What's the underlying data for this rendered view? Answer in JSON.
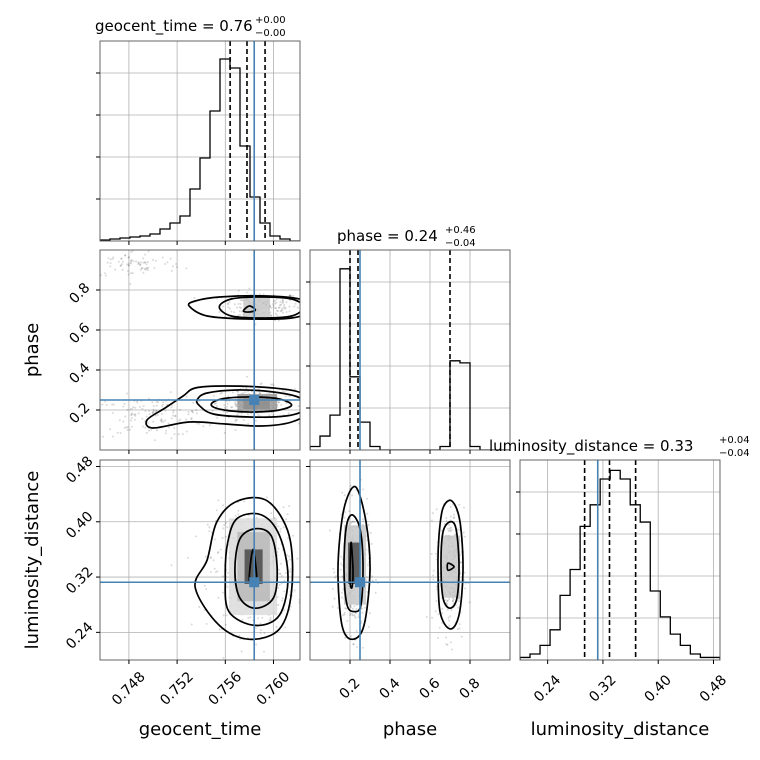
{
  "chart_data": {
    "type": "corner",
    "truth_color": "#4682b4",
    "line_color": "#000000",
    "grid": true,
    "parameters": [
      {
        "name": "geocent_time",
        "axis_label": "geocent_time",
        "title_prefix": "geocent_time = ",
        "median": "0.76",
        "err_plus": "+0.00",
        "err_minus": "−0.00",
        "range": [
          0.7456,
          0.7622
        ],
        "ticks": [
          0.748,
          0.752,
          0.756,
          0.76
        ],
        "tick_labels": [
          "0.748",
          "0.752",
          "0.756",
          "0.760"
        ],
        "truth": 0.7584,
        "quantiles": [
          0.7564,
          0.7578,
          0.7593
        ],
        "hist_edges": [
          0.7456,
          0.74643,
          0.74726,
          0.74809,
          0.74892,
          0.74975,
          0.75058,
          0.75141,
          0.75224,
          0.75307,
          0.7539,
          0.75473,
          0.75556,
          0.75639,
          0.75722,
          0.75805,
          0.75888,
          0.75971,
          0.76054,
          0.76137,
          0.7622
        ],
        "hist_counts": [
          1,
          2,
          3,
          4,
          5,
          7,
          12,
          18,
          25,
          52,
          83,
          130,
          182,
          173,
          95,
          44,
          18,
          5,
          2,
          0
        ],
        "hist_max": 200
      },
      {
        "name": "phase",
        "axis_label": "phase",
        "title_prefix": "phase = ",
        "median": "0.24",
        "err_plus": "+0.46",
        "err_minus": "−0.04",
        "range": [
          0.0,
          1.0
        ],
        "ticks": [
          0.2,
          0.4,
          0.6,
          0.8
        ],
        "tick_labels": [
          "0.2",
          "0.4",
          "0.6",
          "0.8"
        ],
        "truth": 0.25,
        "quantiles": [
          0.2,
          0.24,
          0.7
        ],
        "hist_edges": [
          0.0,
          0.05,
          0.1,
          0.15,
          0.2,
          0.25,
          0.3,
          0.35,
          0.4,
          0.45,
          0.5,
          0.55,
          0.6,
          0.65,
          0.7,
          0.75,
          0.8,
          0.85,
          0.9,
          0.95,
          1.0
        ],
        "hist_counts": [
          5,
          20,
          50,
          260,
          105,
          40,
          5,
          0,
          0,
          0,
          0,
          0,
          0,
          5,
          128,
          125,
          5,
          0,
          0,
          0
        ],
        "hist_max": 287
      },
      {
        "name": "luminosity_distance",
        "axis_label": "luminosity_distance",
        "title_prefix": "luminosity_distance = ",
        "median": "0.33",
        "err_plus": "+0.04",
        "err_minus": "−0.04",
        "range": [
          0.2,
          0.4894
        ],
        "ticks": [
          0.24,
          0.32,
          0.4,
          0.48
        ],
        "tick_labels": [
          "0.24",
          "0.32",
          "0.40",
          "0.48"
        ],
        "truth": 0.3125,
        "quantiles": [
          0.2935,
          0.3295,
          0.3673
        ],
        "hist_edges": [
          0.2,
          0.2145,
          0.229,
          0.2435,
          0.258,
          0.2725,
          0.287,
          0.3015,
          0.316,
          0.3305,
          0.345,
          0.3595,
          0.374,
          0.3885,
          0.403,
          0.4175,
          0.432,
          0.4465,
          0.461,
          0.4755,
          0.4894
        ],
        "hist_counts": [
          3,
          7,
          17,
          35,
          75,
          105,
          155,
          180,
          210,
          220,
          210,
          180,
          160,
          80,
          50,
          30,
          17,
          7,
          3,
          3
        ],
        "hist_max": 232
      }
    ],
    "panels_2d": [
      {
        "x_param": 0,
        "y_param": 1,
        "truth_marker": [
          0.7584,
          0.25
        ],
        "clouds": [
          {
            "cx": 0.759,
            "cy": 0.72,
            "sx": 0.0016,
            "sy": 0.035,
            "n": 180
          },
          {
            "cx": 0.7585,
            "cy": 0.235,
            "sx": 0.0016,
            "sy": 0.04,
            "n": 280
          },
          {
            "cx": 0.75,
            "cy": 0.17,
            "sx": 0.0025,
            "sy": 0.05,
            "n": 150
          },
          {
            "cx": 0.7485,
            "cy": 0.93,
            "sx": 0.002,
            "sy": 0.035,
            "n": 80
          }
        ],
        "density_blocks": [
          {
            "x0": 0.7575,
            "x1": 0.7597,
            "y0": 0.205,
            "y1": 0.27,
            "shade": "#4a4a4a"
          },
          {
            "x0": 0.757,
            "x1": 0.7603,
            "y0": 0.195,
            "y1": 0.28,
            "shade": "#9a9a9a"
          },
          {
            "x0": 0.7575,
            "x1": 0.7597,
            "y0": 0.66,
            "y1": 0.76,
            "shade": "#c8c8c8"
          }
        ],
        "contours": [
          [
            [
              0.755,
              0.215
            ],
            [
              0.7565,
              0.195
            ],
            [
              0.7585,
              0.19
            ],
            [
              0.7605,
              0.2
            ],
            [
              0.7615,
              0.225
            ],
            [
              0.7605,
              0.255
            ],
            [
              0.7585,
              0.265
            ],
            [
              0.7562,
              0.26
            ],
            [
              0.755,
              0.24
            ]
          ],
          [
            [
              0.7538,
              0.225
            ],
            [
              0.755,
              0.18
            ],
            [
              0.758,
              0.165
            ],
            [
              0.761,
              0.17
            ],
            [
              0.7625,
              0.2
            ],
            [
              0.7622,
              0.26
            ],
            [
              0.76,
              0.29
            ],
            [
              0.757,
              0.3
            ],
            [
              0.7545,
              0.285
            ],
            [
              0.7537,
              0.255
            ]
          ],
          [
            [
              0.75,
              0.11
            ],
            [
              0.753,
              0.14
            ],
            [
              0.756,
              0.13
            ],
            [
              0.759,
              0.12
            ],
            [
              0.7615,
              0.14
            ],
            [
              0.7632,
              0.2
            ],
            [
              0.7625,
              0.28
            ],
            [
              0.76,
              0.31
            ],
            [
              0.756,
              0.32
            ],
            [
              0.7535,
              0.31
            ],
            [
              0.7525,
              0.27
            ],
            [
              0.751,
              0.21
            ],
            [
              0.7495,
              0.15
            ]
          ],
          [
            [
              0.7575,
              0.695
            ],
            [
              0.758,
              0.72
            ],
            [
              0.7585,
              0.7
            ],
            [
              0.758,
              0.69
            ]
          ],
          [
            [
              0.7555,
              0.715
            ],
            [
              0.7565,
              0.67
            ],
            [
              0.759,
              0.66
            ],
            [
              0.7615,
              0.67
            ],
            [
              0.7625,
              0.715
            ],
            [
              0.7615,
              0.755
            ],
            [
              0.759,
              0.765
            ],
            [
              0.7565,
              0.755
            ]
          ],
          [
            [
              0.753,
              0.72
            ],
            [
              0.7545,
              0.67
            ],
            [
              0.758,
              0.655
            ],
            [
              0.7615,
              0.66
            ],
            [
              0.7633,
              0.7
            ],
            [
              0.7625,
              0.75
            ],
            [
              0.7595,
              0.77
            ],
            [
              0.7555,
              0.765
            ],
            [
              0.7535,
              0.745
            ]
          ]
        ]
      },
      {
        "x_param": 0,
        "y_param": 2,
        "truth_marker": [
          0.7584,
          0.3125
        ],
        "clouds": [
          {
            "cx": 0.7583,
            "cy": 0.33,
            "sx": 0.0018,
            "sy": 0.045,
            "n": 420
          }
        ],
        "density_blocks": [
          {
            "x0": 0.7563,
            "x1": 0.7603,
            "y0": 0.265,
            "y1": 0.405,
            "shade": "#dcdcdc"
          },
          {
            "x0": 0.757,
            "x1": 0.7597,
            "y0": 0.285,
            "y1": 0.385,
            "shade": "#b8b8b8"
          },
          {
            "x0": 0.7576,
            "x1": 0.7591,
            "y0": 0.31,
            "y1": 0.36,
            "shade": "#4a4a4a"
          }
        ],
        "contours": [
          [
            [
              0.758,
              0.315
            ],
            [
              0.7583,
              0.36
            ],
            [
              0.7586,
              0.315
            ]
          ],
          [
            [
              0.7568,
              0.33
            ],
            [
              0.7572,
              0.29
            ],
            [
              0.7585,
              0.275
            ],
            [
              0.76,
              0.29
            ],
            [
              0.7603,
              0.335
            ],
            [
              0.7598,
              0.38
            ],
            [
              0.7585,
              0.39
            ],
            [
              0.7572,
              0.375
            ]
          ],
          [
            [
              0.756,
              0.32
            ],
            [
              0.7563,
              0.27
            ],
            [
              0.7585,
              0.25
            ],
            [
              0.7605,
              0.265
            ],
            [
              0.7612,
              0.32
            ],
            [
              0.7605,
              0.38
            ],
            [
              0.759,
              0.41
            ],
            [
              0.757,
              0.405
            ],
            [
              0.7562,
              0.37
            ]
          ],
          [
            [
              0.7535,
              0.305
            ],
            [
              0.7555,
              0.25
            ],
            [
              0.758,
              0.23
            ],
            [
              0.7605,
              0.245
            ],
            [
              0.7615,
              0.3
            ],
            [
              0.7613,
              0.38
            ],
            [
              0.7595,
              0.43
            ],
            [
              0.757,
              0.43
            ],
            [
              0.7553,
              0.4
            ],
            [
              0.7545,
              0.345
            ]
          ]
        ]
      },
      {
        "x_param": 1,
        "y_param": 2,
        "truth_marker": [
          0.25,
          0.3125
        ],
        "clouds": [
          {
            "cx": 0.22,
            "cy": 0.33,
            "sx": 0.04,
            "sy": 0.045,
            "n": 360
          },
          {
            "cx": 0.7,
            "cy": 0.33,
            "sx": 0.035,
            "sy": 0.045,
            "n": 300
          }
        ],
        "density_blocks": [
          {
            "x0": 0.17,
            "x1": 0.28,
            "y0": 0.28,
            "y1": 0.395,
            "shade": "#c8c8c8"
          },
          {
            "x0": 0.19,
            "x1": 0.25,
            "y0": 0.31,
            "y1": 0.37,
            "shade": "#4a4a4a"
          },
          {
            "x0": 0.66,
            "x1": 0.75,
            "y0": 0.29,
            "y1": 0.38,
            "shade": "#c8c8c8"
          }
        ],
        "contours": [
          [
            [
              0.2,
              0.315
            ],
            [
              0.205,
              0.37
            ],
            [
              0.215,
              0.33
            ],
            [
              0.21,
              0.305
            ]
          ],
          [
            [
              0.17,
              0.33
            ],
            [
              0.185,
              0.28
            ],
            [
              0.22,
              0.27
            ],
            [
              0.255,
              0.28
            ],
            [
              0.265,
              0.34
            ],
            [
              0.25,
              0.39
            ],
            [
              0.21,
              0.41
            ],
            [
              0.18,
              0.39
            ]
          ],
          [
            [
              0.14,
              0.32
            ],
            [
              0.16,
              0.25
            ],
            [
              0.21,
              0.23
            ],
            [
              0.27,
              0.25
            ],
            [
              0.3,
              0.33
            ],
            [
              0.28,
              0.4
            ],
            [
              0.23,
              0.45
            ],
            [
              0.18,
              0.43
            ],
            [
              0.15,
              0.38
            ]
          ],
          [
            [
              0.69,
              0.33
            ],
            [
              0.72,
              0.335
            ],
            [
              0.69,
              0.34
            ]
          ],
          [
            [
              0.655,
              0.34
            ],
            [
              0.665,
              0.29
            ],
            [
              0.7,
              0.275
            ],
            [
              0.735,
              0.29
            ],
            [
              0.745,
              0.34
            ],
            [
              0.73,
              0.39
            ],
            [
              0.7,
              0.4
            ],
            [
              0.665,
              0.385
            ]
          ],
          [
            [
              0.64,
              0.335
            ],
            [
              0.65,
              0.27
            ],
            [
              0.7,
              0.245
            ],
            [
              0.745,
              0.265
            ],
            [
              0.765,
              0.33
            ],
            [
              0.75,
              0.4
            ],
            [
              0.71,
              0.43
            ],
            [
              0.665,
              0.42
            ],
            [
              0.645,
              0.38
            ]
          ]
        ]
      }
    ]
  }
}
